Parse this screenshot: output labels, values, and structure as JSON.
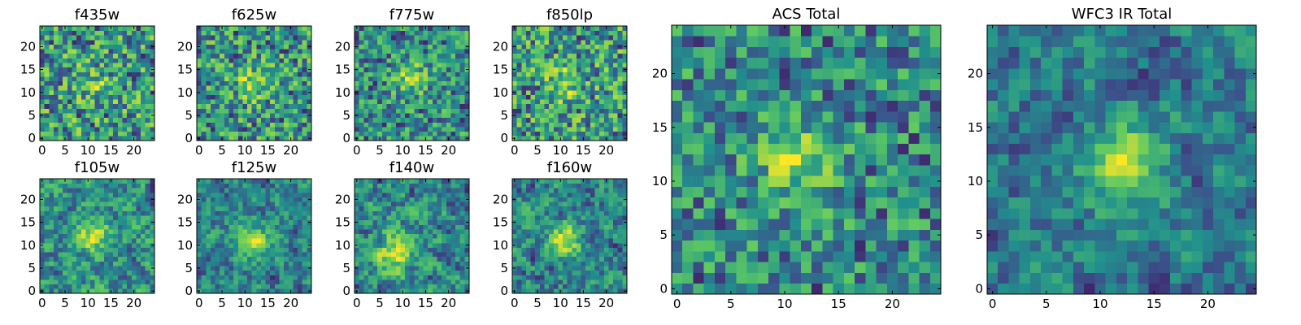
{
  "figure": {
    "colormap": "viridis",
    "colormap_stops": [
      "#440154",
      "#3b528b",
      "#21918c",
      "#5ec962",
      "#fde725"
    ],
    "frame_color": "#000000",
    "background": "#ffffff"
  },
  "chart_data": [
    {
      "type": "heatmap",
      "title": "f435w",
      "grid_size": [
        25,
        25
      ],
      "xlim": [
        -0.5,
        24.5
      ],
      "ylim": [
        -0.5,
        24.5
      ],
      "xticks": [
        0,
        5,
        10,
        15,
        20
      ],
      "yticks": [
        0,
        5,
        10,
        15,
        20
      ],
      "xtick_labels": [
        "0",
        "5",
        "10",
        "15",
        "20"
      ],
      "ytick_labels": [
        "0",
        "5",
        "10",
        "15",
        "20"
      ],
      "grid": false,
      "pattern": "noise",
      "center_source": [
        11,
        12
      ],
      "source_strength": 0.25,
      "seed": 11
    },
    {
      "type": "heatmap",
      "title": "f625w",
      "grid_size": [
        25,
        25
      ],
      "xlim": [
        -0.5,
        24.5
      ],
      "ylim": [
        -0.5,
        24.5
      ],
      "xticks": [
        0,
        5,
        10,
        15,
        20
      ],
      "yticks": [
        0,
        5,
        10,
        15,
        20
      ],
      "xtick_labels": [
        "0",
        "5",
        "10",
        "15",
        "20"
      ],
      "ytick_labels": [
        "0",
        "5",
        "10",
        "15",
        "20"
      ],
      "grid": false,
      "pattern": "noise",
      "center_source": [
        12,
        12
      ],
      "source_strength": 0.45,
      "seed": 23
    },
    {
      "type": "heatmap",
      "title": "f775w",
      "grid_size": [
        25,
        25
      ],
      "xlim": [
        -0.5,
        24.5
      ],
      "ylim": [
        -0.5,
        24.5
      ],
      "xticks": [
        0,
        5,
        10,
        15,
        20
      ],
      "yticks": [
        0,
        5,
        10,
        15,
        20
      ],
      "xtick_labels": [
        "0",
        "5",
        "10",
        "15",
        "20"
      ],
      "ytick_labels": [
        "0",
        "5",
        "10",
        "15",
        "20"
      ],
      "grid": false,
      "pattern": "noise",
      "center_source": [
        12,
        13
      ],
      "source_strength": 0.5,
      "seed": 37
    },
    {
      "type": "heatmap",
      "title": "f850lp",
      "grid_size": [
        25,
        25
      ],
      "xlim": [
        -0.5,
        24.5
      ],
      "ylim": [
        -0.5,
        24.5
      ],
      "xticks": [
        0,
        5,
        10,
        15,
        20
      ],
      "yticks": [
        0,
        5,
        10,
        15,
        20
      ],
      "xtick_labels": [
        "0",
        "5",
        "10",
        "15",
        "20"
      ],
      "ytick_labels": [
        "0",
        "5",
        "10",
        "15",
        "20"
      ],
      "grid": false,
      "pattern": "noise",
      "center_source": [
        11,
        12
      ],
      "source_strength": 0.35,
      "seed": 41
    },
    {
      "type": "heatmap",
      "title": "f105w",
      "grid_size": [
        25,
        25
      ],
      "xlim": [
        -0.5,
        24.5
      ],
      "ylim": [
        -0.5,
        24.5
      ],
      "xticks": [
        0,
        5,
        10,
        15,
        20
      ],
      "yticks": [
        0,
        5,
        10,
        15,
        20
      ],
      "xtick_labels": [
        "0",
        "5",
        "10",
        "15",
        "20"
      ],
      "ytick_labels": [
        "0",
        "5",
        "10",
        "15",
        "20"
      ],
      "grid": false,
      "pattern": "smooth",
      "center_source": [
        11,
        12
      ],
      "source_strength": 0.45,
      "seed": 53
    },
    {
      "type": "heatmap",
      "title": "f125w",
      "grid_size": [
        25,
        25
      ],
      "xlim": [
        -0.5,
        24.5
      ],
      "ylim": [
        -0.5,
        24.5
      ],
      "xticks": [
        0,
        5,
        10,
        15,
        20
      ],
      "yticks": [
        0,
        5,
        10,
        15,
        20
      ],
      "xtick_labels": [
        "0",
        "5",
        "10",
        "15",
        "20"
      ],
      "ytick_labels": [
        "0",
        "5",
        "10",
        "15",
        "20"
      ],
      "grid": false,
      "pattern": "smooth",
      "center_source": [
        12,
        11
      ],
      "source_strength": 0.6,
      "seed": 67
    },
    {
      "type": "heatmap",
      "title": "f140w",
      "grid_size": [
        25,
        25
      ],
      "xlim": [
        -0.5,
        24.5
      ],
      "ylim": [
        -0.5,
        24.5
      ],
      "xticks": [
        0,
        5,
        10,
        15,
        20
      ],
      "yticks": [
        0,
        5,
        10,
        15,
        20
      ],
      "xtick_labels": [
        "0",
        "5",
        "10",
        "15",
        "20"
      ],
      "ytick_labels": [
        "0",
        "5",
        "10",
        "15",
        "20"
      ],
      "grid": false,
      "pattern": "smooth",
      "center_source": [
        8,
        8
      ],
      "source_strength": 0.55,
      "seed": 71
    },
    {
      "type": "heatmap",
      "title": "f160w",
      "grid_size": [
        25,
        25
      ],
      "xlim": [
        -0.5,
        24.5
      ],
      "ylim": [
        -0.5,
        24.5
      ],
      "xticks": [
        0,
        5,
        10,
        15,
        20
      ],
      "yticks": [
        0,
        5,
        10,
        15,
        20
      ],
      "xtick_labels": [
        "0",
        "5",
        "10",
        "15",
        "20"
      ],
      "ytick_labels": [
        "0",
        "5",
        "10",
        "15",
        "20"
      ],
      "grid": false,
      "pattern": "smooth",
      "center_source": [
        11,
        11
      ],
      "source_strength": 0.65,
      "seed": 83
    },
    {
      "type": "heatmap",
      "title": "ACS Total",
      "grid_size": [
        25,
        25
      ],
      "xlim": [
        -0.5,
        24.5
      ],
      "ylim": [
        -0.5,
        24.5
      ],
      "xticks": [
        0,
        5,
        10,
        15,
        20
      ],
      "yticks": [
        0,
        5,
        10,
        15,
        20
      ],
      "xtick_labels": [
        "0",
        "5",
        "10",
        "15",
        "20"
      ],
      "ytick_labels": [
        "0",
        "5",
        "10",
        "15",
        "20"
      ],
      "grid": false,
      "pattern": "noise",
      "center_source": [
        11,
        12
      ],
      "source_strength": 0.6,
      "seed": 97
    },
    {
      "type": "heatmap",
      "title": "WFC3 IR Total",
      "grid_size": [
        25,
        25
      ],
      "xlim": [
        -0.5,
        24.5
      ],
      "ylim": [
        -0.5,
        24.5
      ],
      "xticks": [
        0,
        5,
        10,
        15,
        20
      ],
      "yticks": [
        0,
        5,
        10,
        15,
        20
      ],
      "xtick_labels": [
        "0",
        "5",
        "10",
        "15",
        "20"
      ],
      "ytick_labels": [
        "0",
        "5",
        "10",
        "15",
        "20"
      ],
      "grid": false,
      "pattern": "smooth",
      "center_source": [
        12,
        12
      ],
      "source_strength": 0.7,
      "seed": 101
    }
  ]
}
